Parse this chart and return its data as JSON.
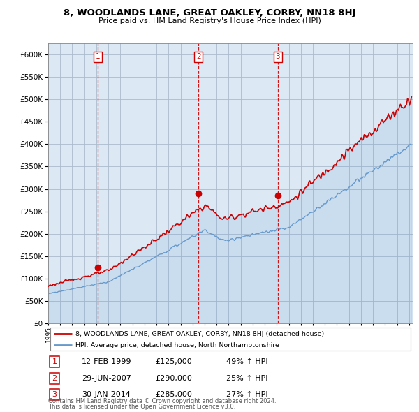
{
  "title": "8, WOODLANDS LANE, GREAT OAKLEY, CORBY, NN18 8HJ",
  "subtitle": "Price paid vs. HM Land Registry's House Price Index (HPI)",
  "ytick_values": [
    0,
    50000,
    100000,
    150000,
    200000,
    250000,
    300000,
    350000,
    400000,
    450000,
    500000,
    550000,
    600000
  ],
  "ylim": [
    0,
    625000
  ],
  "trans_dates": [
    1999.12,
    2007.49,
    2014.08
  ],
  "trans_prices": [
    125000,
    290000,
    285000
  ],
  "trans_labels": [
    "1",
    "2",
    "3"
  ],
  "transaction_rows": [
    {
      "label": "1",
      "date": "12-FEB-1999",
      "price": "£125,000",
      "hpi_pct": "49% ↑ HPI"
    },
    {
      "label": "2",
      "date": "29-JUN-2007",
      "price": "£290,000",
      "hpi_pct": "25% ↑ HPI"
    },
    {
      "label": "3",
      "date": "30-JAN-2014",
      "price": "£285,000",
      "hpi_pct": "27% ↑ HPI"
    }
  ],
  "legend_line1": "8, WOODLANDS LANE, GREAT OAKLEY, CORBY, NN18 8HJ (detached house)",
  "legend_line2": "HPI: Average price, detached house, North Northamptonshire",
  "footer1": "Contains HM Land Registry data © Crown copyright and database right 2024.",
  "footer2": "This data is licensed under the Open Government Licence v3.0.",
  "red_line_color": "#cc0000",
  "blue_line_color": "#6699cc",
  "fill_color": "#dce9f5",
  "background_color": "#ffffff",
  "plot_bg_color": "#dce9f5",
  "grid_color": "#aabbcc",
  "xlim_start": 1995.0,
  "xlim_end": 2025.3
}
